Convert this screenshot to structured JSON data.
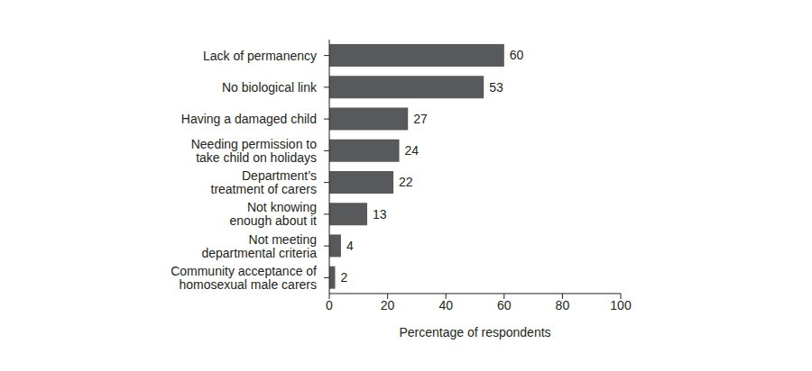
{
  "chart_data": {
    "type": "bar",
    "orientation": "horizontal",
    "categories": [
      "Lack of permanency",
      "No biological link",
      "Having a damaged child",
      "Needing permission to\ntake child on holidays",
      "Department’s\ntreatment of carers",
      "Not knowing\nenough about it",
      "Not meeting\ndepartmental criteria",
      "Community acceptance of\nhomosexual male carers"
    ],
    "values": [
      60,
      53,
      27,
      24,
      22,
      13,
      4,
      2
    ],
    "color": "#58595b",
    "x_label": "Percentage of respondents",
    "xlim": [
      0,
      100
    ],
    "xticks": [
      0,
      20,
      40,
      60,
      80,
      100
    ],
    "grid": false,
    "data_labels": true
  }
}
